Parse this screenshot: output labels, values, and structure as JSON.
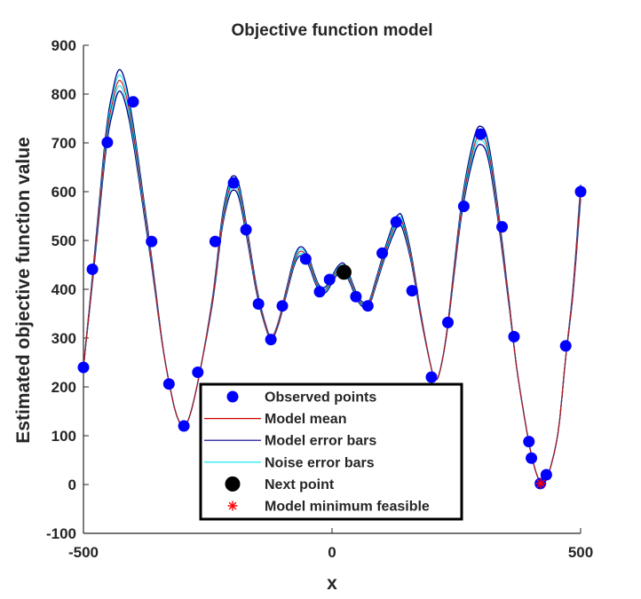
{
  "chart_data": {
    "type": "line",
    "title": "Objective function model",
    "xlabel": "x",
    "ylabel": "Estimated objective function value",
    "xlim": [
      -500,
      500
    ],
    "ylim": [
      -100,
      900
    ],
    "xticks": [
      -500,
      0,
      500
    ],
    "yticks": [
      -100,
      0,
      100,
      200,
      300,
      400,
      500,
      600,
      700,
      800,
      900
    ],
    "grid": false,
    "legend_position": "bottom-center",
    "colors": {
      "observed": "#0000ff",
      "model_mean": "#cc0000",
      "model_error": "#00008b",
      "noise_error": "#00e5ee",
      "next_point": "#000000",
      "model_min": "#ff0000"
    },
    "legend": [
      {
        "key": "observed",
        "label": "Observed points",
        "marker": "dot"
      },
      {
        "key": "model_mean",
        "label": "Model mean",
        "marker": "line"
      },
      {
        "key": "model_error",
        "label": "Model error bars",
        "marker": "line"
      },
      {
        "key": "noise_error",
        "label": "Noise error bars",
        "marker": "line"
      },
      {
        "key": "next_point",
        "label": "Next point",
        "marker": "bigdot"
      },
      {
        "key": "model_min",
        "label": "Model minimum feasible",
        "marker": "star"
      }
    ],
    "curve_knots": [
      [
        -500,
        240
      ],
      [
        -480,
        440
      ],
      [
        -455,
        700
      ],
      [
        -440,
        790
      ],
      [
        -428,
        828
      ],
      [
        -415,
        800
      ],
      [
        -400,
        720
      ],
      [
        -380,
        580
      ],
      [
        -362,
        450
      ],
      [
        -340,
        280
      ],
      [
        -322,
        180
      ],
      [
        -310,
        135
      ],
      [
        -298,
        120
      ],
      [
        -285,
        145
      ],
      [
        -266,
        230
      ],
      [
        -240,
        380
      ],
      [
        -222,
        530
      ],
      [
        -208,
        600
      ],
      [
        -198,
        618
      ],
      [
        -187,
        600
      ],
      [
        -172,
        520
      ],
      [
        -152,
        400
      ],
      [
        -135,
        330
      ],
      [
        -122,
        300
      ],
      [
        -108,
        330
      ],
      [
        -93,
        390
      ],
      [
        -75,
        460
      ],
      [
        -62,
        478
      ],
      [
        -48,
        460
      ],
      [
        -34,
        420
      ],
      [
        -24,
        400
      ],
      [
        -12,
        400
      ],
      [
        0,
        420
      ],
      [
        12,
        440
      ],
      [
        24,
        445
      ],
      [
        36,
        420
      ],
      [
        50,
        385
      ],
      [
        63,
        368
      ],
      [
        75,
        372
      ],
      [
        90,
        420
      ],
      [
        108,
        480
      ],
      [
        122,
        520
      ],
      [
        132,
        540
      ],
      [
        142,
        535
      ],
      [
        160,
        460
      ],
      [
        178,
        350
      ],
      [
        195,
        260
      ],
      [
        205,
        222
      ],
      [
        215,
        225
      ],
      [
        232,
        320
      ],
      [
        260,
        560
      ],
      [
        285,
        690
      ],
      [
        300,
        715
      ],
      [
        315,
        680
      ],
      [
        335,
        545
      ],
      [
        355,
        380
      ],
      [
        370,
        250
      ],
      [
        385,
        150
      ],
      [
        400,
        65
      ],
      [
        412,
        20
      ],
      [
        420,
        2
      ],
      [
        428,
        5
      ],
      [
        438,
        30
      ],
      [
        455,
        110
      ],
      [
        470,
        260
      ],
      [
        485,
        400
      ],
      [
        500,
        600
      ]
    ],
    "observed_points": [
      {
        "x": -500,
        "y": 240
      },
      {
        "x": -482,
        "y": 441
      },
      {
        "x": -452,
        "y": 701
      },
      {
        "x": -400,
        "y": 784
      },
      {
        "x": -363,
        "y": 498
      },
      {
        "x": -328,
        "y": 206
      },
      {
        "x": -298,
        "y": 120
      },
      {
        "x": -270,
        "y": 230
      },
      {
        "x": -235,
        "y": 498
      },
      {
        "x": -198,
        "y": 618
      },
      {
        "x": -173,
        "y": 522
      },
      {
        "x": -148,
        "y": 370
      },
      {
        "x": -123,
        "y": 297
      },
      {
        "x": -100,
        "y": 366
      },
      {
        "x": -53,
        "y": 462
      },
      {
        "x": -25,
        "y": 395
      },
      {
        "x": -5,
        "y": 420
      },
      {
        "x": 48,
        "y": 385
      },
      {
        "x": 72,
        "y": 366
      },
      {
        "x": 101,
        "y": 474
      },
      {
        "x": 129,
        "y": 538
      },
      {
        "x": 161,
        "y": 397
      },
      {
        "x": 200,
        "y": 220
      },
      {
        "x": 233,
        "y": 332
      },
      {
        "x": 265,
        "y": 570
      },
      {
        "x": 299,
        "y": 718
      },
      {
        "x": 342,
        "y": 528
      },
      {
        "x": 366,
        "y": 303
      },
      {
        "x": 396,
        "y": 88
      },
      {
        "x": 401,
        "y": 54
      },
      {
        "x": 419,
        "y": 2
      },
      {
        "x": 431,
        "y": 20
      },
      {
        "x": 470,
        "y": 284
      },
      {
        "x": 500,
        "y": 600
      }
    ],
    "next_point": {
      "x": 24,
      "y": 435
    },
    "model_min_point": {
      "x": 420,
      "y": 2
    }
  }
}
